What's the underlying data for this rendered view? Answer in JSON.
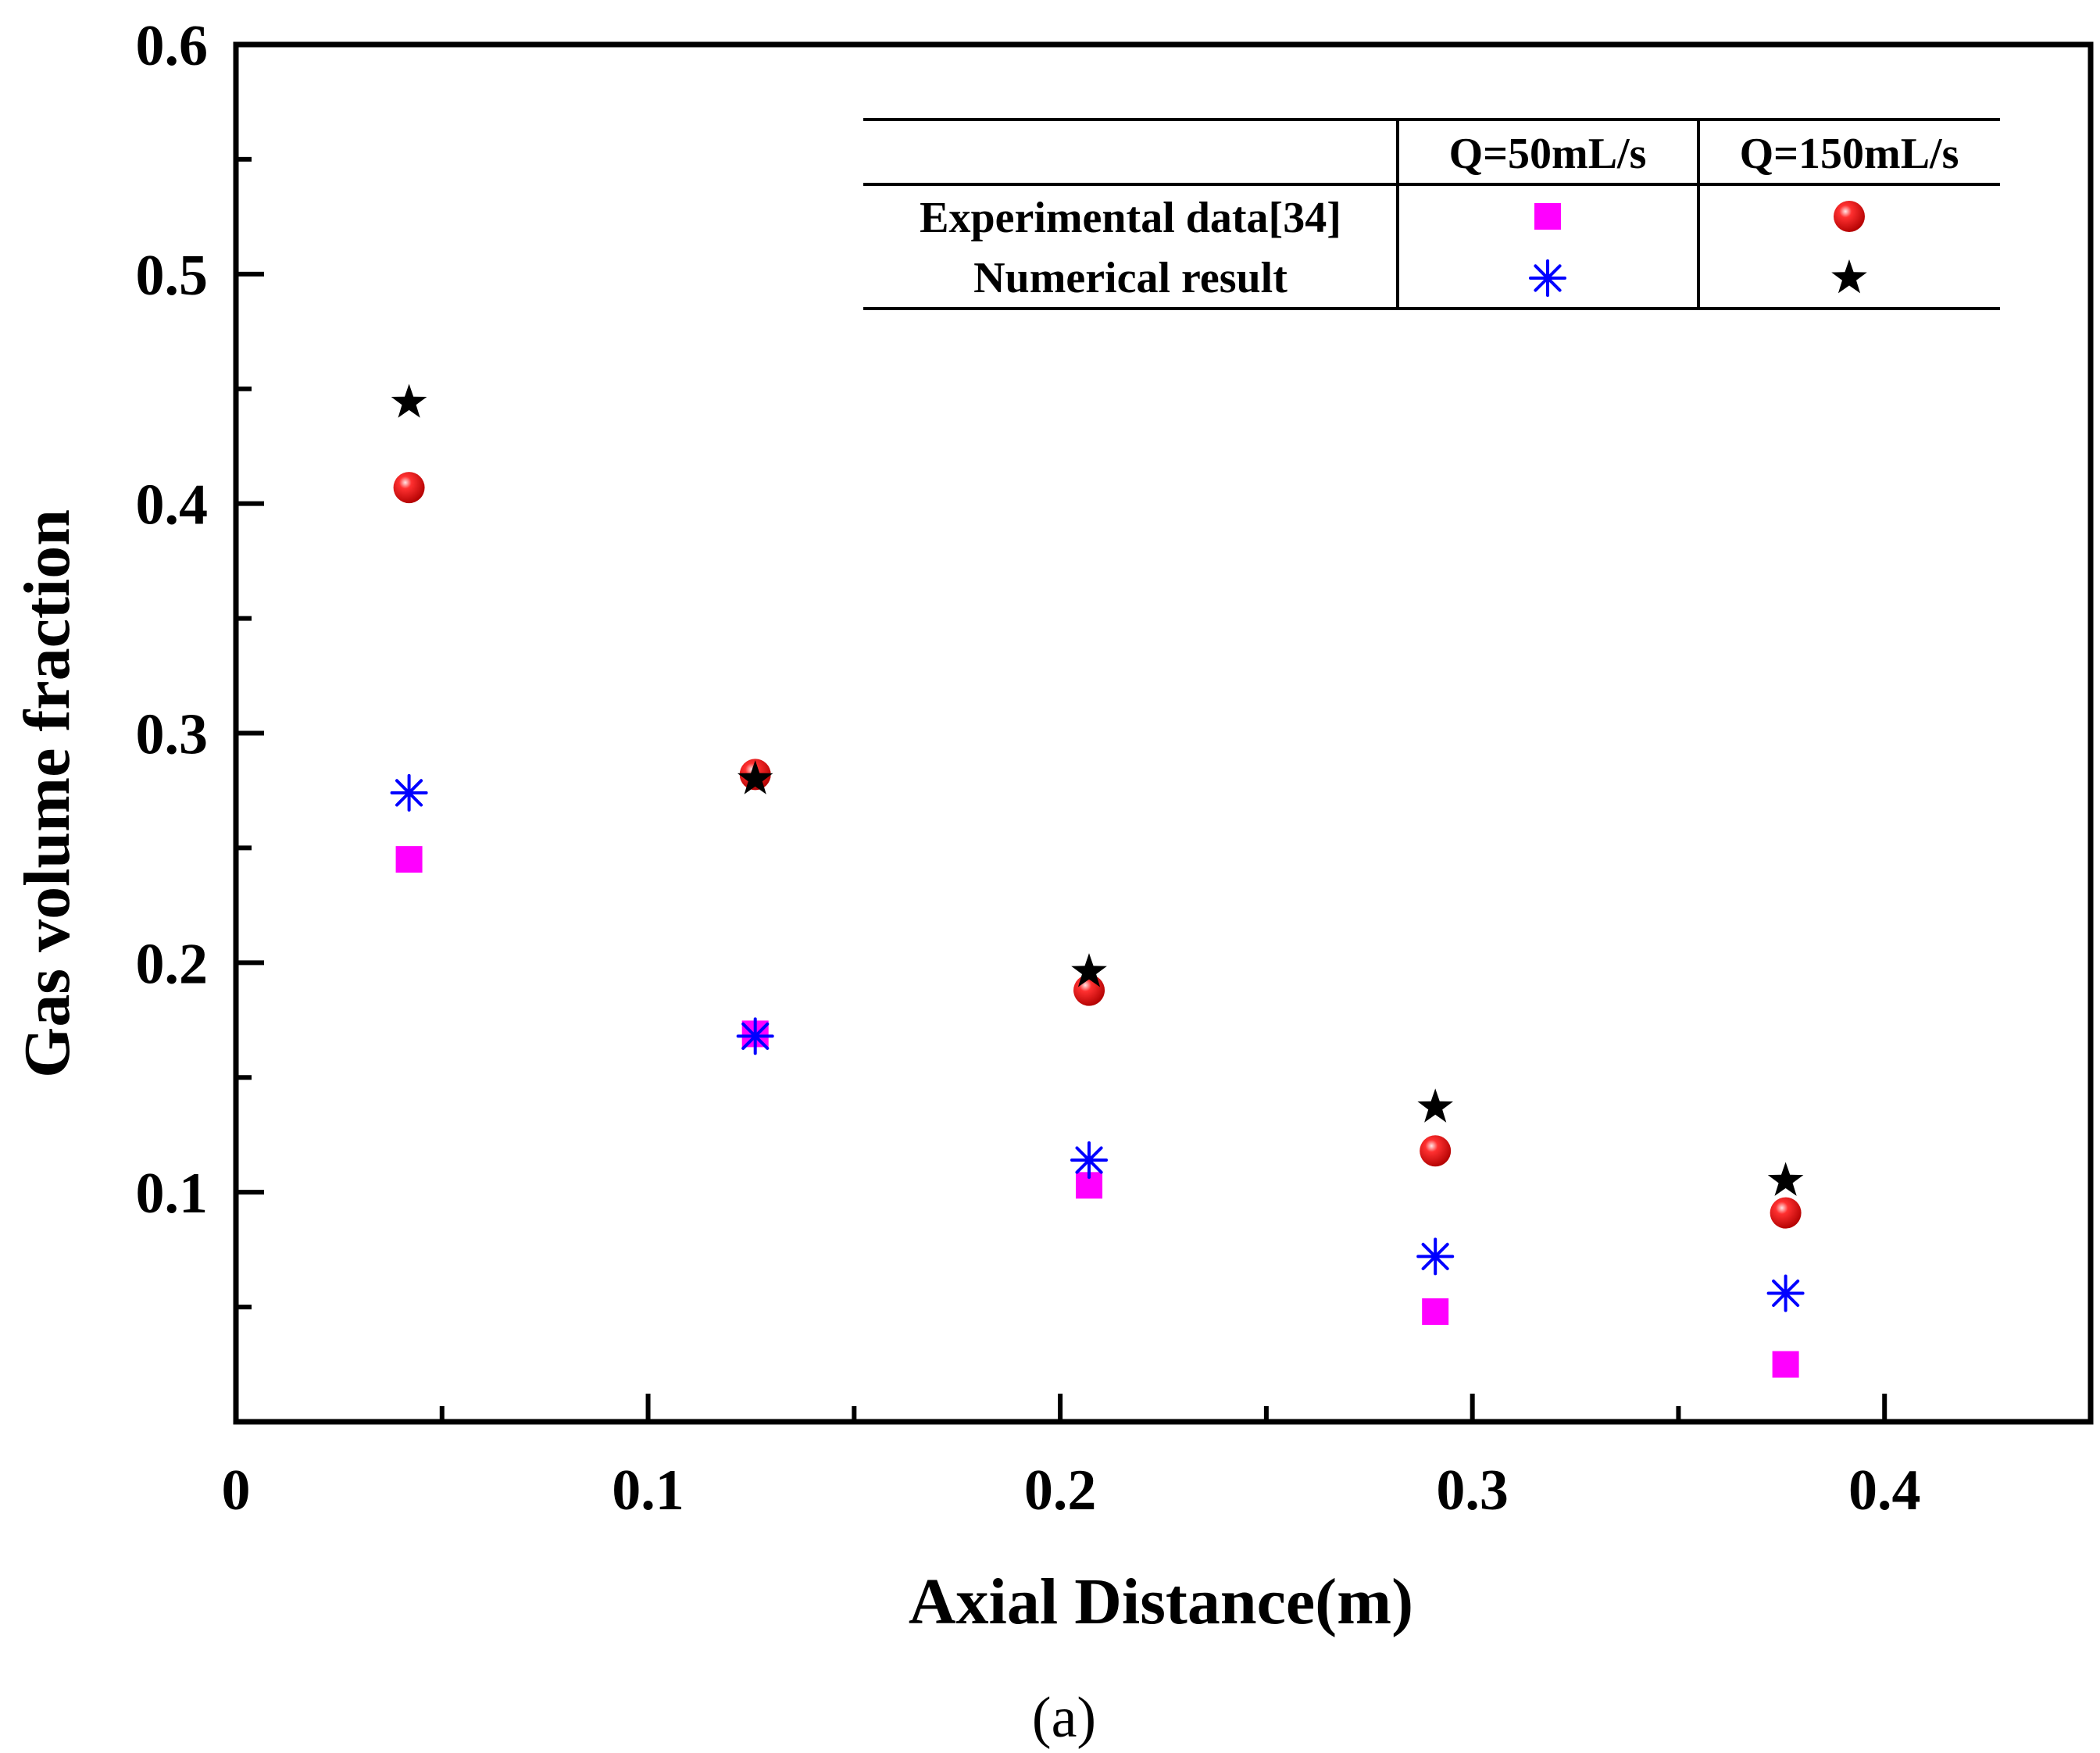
{
  "chart_data": {
    "type": "scatter",
    "title": "",
    "xlabel": "Axial Distance(m)",
    "ylabel": "Gas volume fraction",
    "caption": "(a)",
    "xlim": [
      0,
      0.45
    ],
    "ylim": [
      0,
      0.6
    ],
    "xticks": [
      0,
      0.1,
      0.2,
      0.3,
      0.4
    ],
    "xtick_labels": [
      "0",
      "0.1",
      "0.2",
      "0.3",
      "0.4"
    ],
    "yticks": [
      0.1,
      0.2,
      0.3,
      0.4,
      0.5,
      0.6
    ],
    "ytick_labels": [
      "0.1",
      "0.2",
      "0.3",
      "0.4",
      "0.5",
      "0.6"
    ],
    "x_minor_step": 0.05,
    "y_minor_step": 0.05,
    "grid": false,
    "legend": {
      "placement": "top-right",
      "col_headers": [
        "Q=50mL/s",
        "Q=150mL/s"
      ],
      "row_labels": [
        "Experimental data[34]",
        "Numerical result"
      ]
    },
    "series": [
      {
        "name": "Experimental data[34] Q=50mL/s",
        "marker": "square",
        "color": "#ff00ff",
        "points": [
          [
            0.042,
            0.245
          ],
          [
            0.126,
            0.169
          ],
          [
            0.207,
            0.103
          ],
          [
            0.291,
            0.048
          ],
          [
            0.376,
            0.025
          ]
        ]
      },
      {
        "name": "Experimental data[34] Q=150mL/s",
        "marker": "sphere",
        "color": "#ff0000",
        "points": [
          [
            0.042,
            0.407
          ],
          [
            0.126,
            0.282
          ],
          [
            0.207,
            0.188
          ],
          [
            0.291,
            0.118
          ],
          [
            0.376,
            0.091
          ]
        ]
      },
      {
        "name": "Numerical result Q=50mL/s",
        "marker": "asterisk",
        "color": "#0000ff",
        "points": [
          [
            0.042,
            0.274
          ],
          [
            0.126,
            0.168
          ],
          [
            0.207,
            0.114
          ],
          [
            0.291,
            0.072
          ],
          [
            0.376,
            0.056
          ]
        ]
      },
      {
        "name": "Numerical result Q=150mL/s",
        "marker": "star",
        "color": "#000000",
        "points": [
          [
            0.042,
            0.444
          ],
          [
            0.126,
            0.28
          ],
          [
            0.207,
            0.196
          ],
          [
            0.291,
            0.137
          ],
          [
            0.376,
            0.105
          ]
        ]
      }
    ]
  }
}
